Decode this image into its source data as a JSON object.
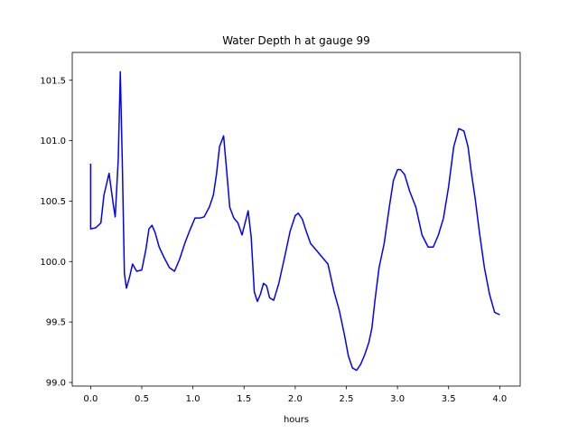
{
  "chart_data": {
    "type": "line",
    "title": "Water Depth h at gauge 99",
    "xlabel": "hours",
    "ylabel": "",
    "xlim": [
      -0.18,
      4.2
    ],
    "ylim": [
      98.97,
      101.73
    ],
    "xticks": [
      0.0,
      0.5,
      1.0,
      1.5,
      2.0,
      2.5,
      3.0,
      3.5,
      4.0
    ],
    "xtick_labels": [
      "0.0",
      "0.5",
      "1.0",
      "1.5",
      "2.0",
      "2.5",
      "3.0",
      "3.5",
      "4.0"
    ],
    "yticks": [
      99.0,
      99.5,
      100.0,
      100.5,
      101.0,
      101.5
    ],
    "ytick_labels": [
      "99.0",
      "99.5",
      "100.0",
      "100.5",
      "101.0",
      "101.5"
    ],
    "grid": false,
    "series": [
      {
        "color": "#0000ff",
        "x": [
          0.0,
          0.0,
          0.05,
          0.1,
          0.13,
          0.18,
          0.22,
          0.24,
          0.27,
          0.29,
          0.31,
          0.33,
          0.35,
          0.38,
          0.41,
          0.45,
          0.5,
          0.54,
          0.57,
          0.6,
          0.63,
          0.67,
          0.72,
          0.77,
          0.82,
          0.87,
          0.92,
          0.97,
          1.02,
          1.07,
          1.11,
          1.16,
          1.2,
          1.23,
          1.26,
          1.3,
          1.33,
          1.36,
          1.4,
          1.44,
          1.48,
          1.51,
          1.54,
          1.57,
          1.6,
          1.63,
          1.66,
          1.69,
          1.72,
          1.75,
          1.79,
          1.84,
          1.9,
          1.95,
          2.0,
          2.03,
          2.07,
          2.1,
          2.15,
          2.2,
          2.25,
          2.32,
          2.38,
          2.43,
          2.48,
          2.52,
          2.56,
          2.6,
          2.64,
          2.68,
          2.72,
          2.75,
          2.78,
          2.82,
          2.87,
          2.92,
          2.96,
          3.0,
          3.03,
          3.07,
          3.12,
          3.18,
          3.24,
          3.3,
          3.35,
          3.4,
          3.45,
          3.5,
          3.55,
          3.6,
          3.65,
          3.69,
          3.72,
          3.76,
          3.8,
          3.85,
          3.9,
          3.95,
          4.0
        ],
        "y": [
          100.81,
          100.27,
          100.28,
          100.32,
          100.55,
          100.73,
          100.48,
          100.37,
          100.85,
          101.57,
          100.8,
          99.9,
          99.78,
          99.87,
          99.98,
          99.92,
          99.93,
          100.1,
          100.27,
          100.3,
          100.24,
          100.12,
          100.03,
          99.95,
          99.92,
          100.02,
          100.15,
          100.26,
          100.36,
          100.36,
          100.37,
          100.45,
          100.55,
          100.72,
          100.95,
          101.04,
          100.75,
          100.45,
          100.36,
          100.32,
          100.22,
          100.32,
          100.42,
          100.2,
          99.75,
          99.67,
          99.73,
          99.82,
          99.8,
          99.7,
          99.68,
          99.82,
          100.05,
          100.25,
          100.38,
          100.4,
          100.35,
          100.27,
          100.15,
          100.1,
          100.05,
          99.98,
          99.75,
          99.6,
          99.4,
          99.22,
          99.12,
          99.1,
          99.15,
          99.23,
          99.33,
          99.45,
          99.68,
          99.95,
          100.15,
          100.45,
          100.67,
          100.76,
          100.76,
          100.72,
          100.58,
          100.45,
          100.22,
          100.12,
          100.12,
          100.22,
          100.36,
          100.62,
          100.95,
          101.1,
          101.08,
          100.95,
          100.75,
          100.52,
          100.25,
          99.95,
          99.73,
          99.58,
          99.56
        ]
      }
    ]
  }
}
